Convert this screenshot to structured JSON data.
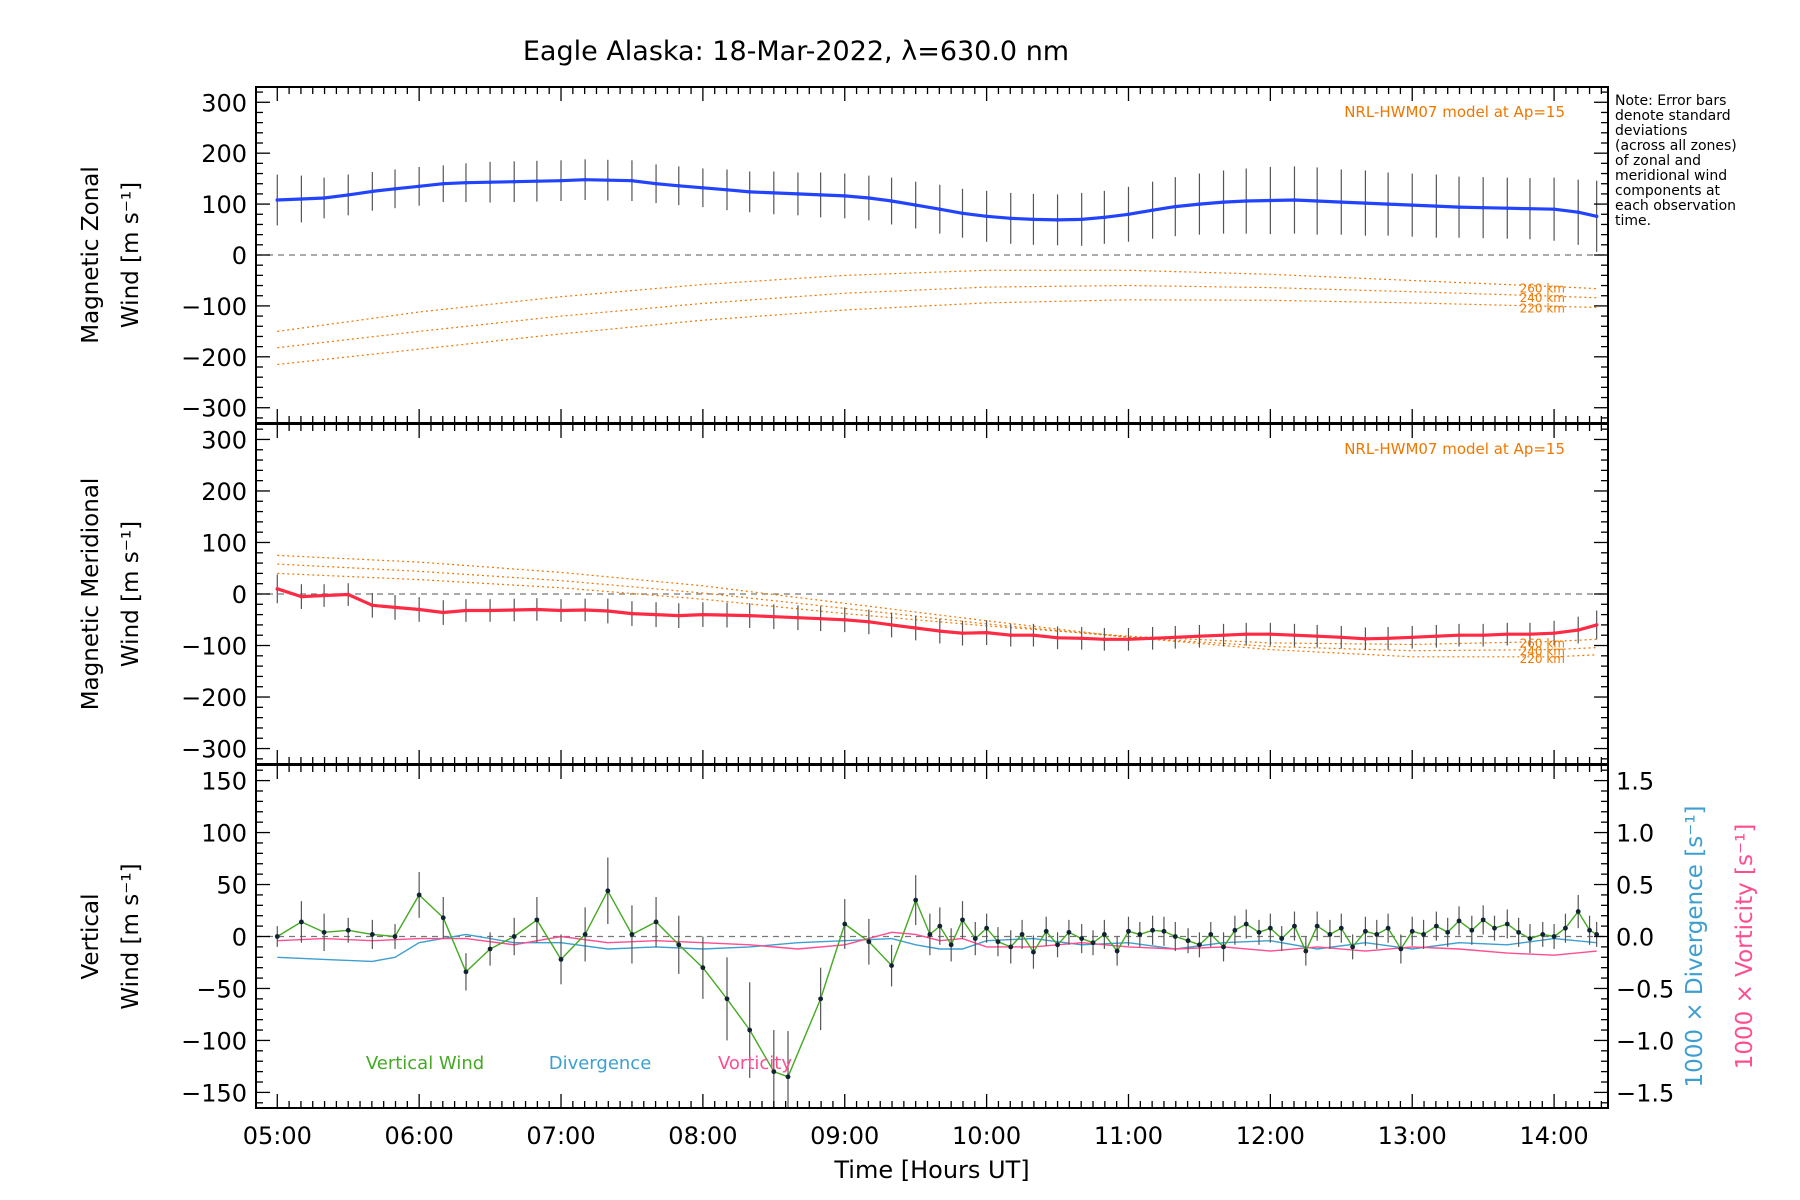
{
  "title": "Eagle Alaska: 18-Mar-2022, λ=630.0 nm",
  "note": [
    "Note: Error bars",
    "denote standard",
    "deviations",
    "(across all zones)",
    "of zonal and",
    "meridional wind",
    "components at",
    "each observation",
    "time."
  ],
  "colors": {
    "zonal": "#2244ff",
    "meridional": "#ff2a44",
    "vertical": "#44aa22",
    "divergence": "#3d9fd0",
    "vorticity": "#ff4d8f",
    "model": "#ee7700",
    "errorbar": "#555555"
  },
  "chart_data": [
    {
      "type": "line",
      "panel": "zonal",
      "ylabel_line1": "Magnetic Zonal",
      "ylabel_line2": "Wind [m s⁻¹]",
      "ylim": [
        -330,
        330
      ],
      "yticks": [
        "300",
        "200",
        "100",
        "0",
        "−100",
        "−200",
        "−300"
      ],
      "model_label": "NRL-HWM07 model at Ap=15",
      "model_altitudes": [
        "260 km",
        "240 km",
        "220 km"
      ],
      "model_curves": [
        {
          "altitude": "260 km",
          "x": [
            5.0,
            6.0,
            7.0,
            8.0,
            9.0,
            10.0,
            11.0,
            12.0,
            13.0,
            14.0,
            14.3
          ],
          "y": [
            -150,
            -112,
            -82,
            -58,
            -40,
            -30,
            -30,
            -38,
            -50,
            -62,
            -66
          ]
        },
        {
          "altitude": "240 km",
          "x": [
            5.0,
            6.0,
            7.0,
            8.0,
            9.0,
            10.0,
            11.0,
            12.0,
            13.0,
            14.0,
            14.3
          ],
          "y": [
            -182,
            -150,
            -120,
            -95,
            -75,
            -63,
            -60,
            -64,
            -72,
            -81,
            -84
          ]
        },
        {
          "altitude": "220 km",
          "x": [
            5.0,
            6.0,
            7.0,
            8.0,
            9.0,
            10.0,
            11.0,
            12.0,
            13.0,
            14.0,
            14.3
          ],
          "y": [
            -215,
            -185,
            -155,
            -128,
            -108,
            -94,
            -88,
            -89,
            -94,
            -101,
            -103
          ]
        }
      ],
      "series": [
        {
          "x": [
            5.0,
            5.17,
            5.33,
            5.5,
            5.67,
            5.83,
            6.0,
            6.17,
            6.33,
            6.5,
            6.67,
            6.83,
            7.0,
            7.17,
            7.33,
            7.5,
            7.67,
            7.83,
            8.0,
            8.17,
            8.33,
            8.5,
            8.67,
            8.83,
            9.0,
            9.17,
            9.33,
            9.5,
            9.67,
            9.83,
            10.0,
            10.17,
            10.33,
            10.5,
            10.67,
            10.83,
            11.0,
            11.17,
            11.33,
            11.5,
            11.67,
            11.83,
            12.0,
            12.17,
            12.33,
            12.5,
            12.67,
            12.83,
            13.0,
            13.17,
            13.33,
            13.5,
            13.67,
            13.83,
            14.0,
            14.17,
            14.3
          ],
          "y": [
            108,
            110,
            112,
            118,
            125,
            130,
            135,
            140,
            142,
            143,
            144,
            145,
            146,
            148,
            147,
            146,
            140,
            136,
            132,
            128,
            124,
            122,
            120,
            118,
            116,
            112,
            106,
            98,
            90,
            82,
            76,
            72,
            70,
            69,
            70,
            74,
            80,
            88,
            95,
            100,
            104,
            106,
            107,
            108,
            106,
            104,
            102,
            100,
            98,
            96,
            94,
            93,
            92,
            91,
            90,
            84,
            76
          ],
          "err": [
            50,
            46,
            40,
            40,
            38,
            38,
            38,
            36,
            38,
            40,
            40,
            40,
            40,
            40,
            40,
            40,
            38,
            38,
            38,
            40,
            40,
            42,
            42,
            44,
            44,
            44,
            46,
            46,
            48,
            48,
            50,
            50,
            50,
            50,
            52,
            52,
            54,
            56,
            58,
            60,
            62,
            64,
            66,
            66,
            66,
            64,
            64,
            62,
            62,
            62,
            60,
            60,
            60,
            60,
            62,
            64,
            70
          ]
        }
      ]
    },
    {
      "type": "line",
      "panel": "meridional",
      "ylabel_line1": "Magnetic Meridional",
      "ylabel_line2": "Wind [m s⁻¹]",
      "ylim": [
        -330,
        330
      ],
      "yticks": [
        "300",
        "200",
        "100",
        "0",
        "−100",
        "−200",
        "−300"
      ],
      "model_label": "NRL-HWM07 model at Ap=15",
      "model_altitudes": [
        "260 km",
        "240 km",
        "220 km"
      ],
      "model_curves": [
        {
          "altitude": "260 km",
          "x": [
            5.0,
            6.0,
            7.0,
            8.0,
            9.0,
            10.0,
            11.0,
            12.0,
            13.0,
            14.0,
            14.3
          ],
          "y": [
            40,
            28,
            12,
            -10,
            -38,
            -62,
            -82,
            -95,
            -98,
            -92,
            -88
          ]
        },
        {
          "altitude": "240 km",
          "x": [
            5.0,
            6.0,
            7.0,
            8.0,
            9.0,
            10.0,
            11.0,
            12.0,
            13.0,
            14.0,
            14.3
          ],
          "y": [
            58,
            44,
            26,
            2,
            -28,
            -58,
            -84,
            -102,
            -110,
            -108,
            -104
          ]
        },
        {
          "altitude": "220 km",
          "x": [
            5.0,
            6.0,
            7.0,
            8.0,
            9.0,
            10.0,
            11.0,
            12.0,
            13.0,
            14.0,
            14.3
          ],
          "y": [
            75,
            62,
            42,
            16,
            -18,
            -52,
            -84,
            -108,
            -122,
            -122,
            -118
          ]
        }
      ],
      "series": [
        {
          "x": [
            5.0,
            5.17,
            5.33,
            5.5,
            5.67,
            5.83,
            6.0,
            6.17,
            6.33,
            6.5,
            6.67,
            6.83,
            7.0,
            7.17,
            7.33,
            7.5,
            7.67,
            7.83,
            8.0,
            8.17,
            8.33,
            8.5,
            8.67,
            8.83,
            9.0,
            9.17,
            9.33,
            9.5,
            9.67,
            9.83,
            10.0,
            10.17,
            10.33,
            10.5,
            10.67,
            10.83,
            11.0,
            11.17,
            11.33,
            11.5,
            11.67,
            11.83,
            12.0,
            12.17,
            12.33,
            12.5,
            12.67,
            12.83,
            13.0,
            13.17,
            13.33,
            13.5,
            13.67,
            13.83,
            14.0,
            14.17,
            14.3
          ],
          "y": [
            10,
            -5,
            -3,
            -1,
            -22,
            -26,
            -30,
            -36,
            -32,
            -32,
            -31,
            -30,
            -32,
            -31,
            -33,
            -38,
            -40,
            -42,
            -40,
            -41,
            -42,
            -44,
            -46,
            -48,
            -50,
            -54,
            -60,
            -66,
            -72,
            -76,
            -75,
            -80,
            -80,
            -85,
            -86,
            -88,
            -88,
            -86,
            -84,
            -82,
            -80,
            -78,
            -78,
            -80,
            -82,
            -84,
            -87,
            -86,
            -84,
            -82,
            -80,
            -80,
            -78,
            -78,
            -76,
            -70,
            -60
          ],
          "err": [
            28,
            24,
            22,
            22,
            24,
            24,
            24,
            24,
            22,
            22,
            22,
            22,
            22,
            22,
            24,
            24,
            24,
            24,
            24,
            24,
            24,
            24,
            24,
            24,
            24,
            24,
            24,
            24,
            24,
            24,
            24,
            22,
            22,
            22,
            22,
            22,
            22,
            22,
            22,
            22,
            22,
            22,
            22,
            22,
            22,
            22,
            22,
            22,
            22,
            22,
            22,
            22,
            22,
            22,
            24,
            26,
            28
          ]
        }
      ]
    },
    {
      "type": "line",
      "panel": "vertical",
      "ylabel_line1": "Vertical",
      "ylabel_line2": "Wind [m s⁻¹]",
      "ylim": [
        -165,
        165
      ],
      "yticks": [
        "150",
        "100",
        "50",
        "0",
        "−50",
        "−100",
        "−150"
      ],
      "y2lim": [
        -1.65,
        1.65
      ],
      "y2ticks": [
        "1.5",
        "1.0",
        "0.5",
        "0.0",
        "−0.5",
        "−1.0",
        "−1.5"
      ],
      "y2label_divergence": "1000 × Divergence [s⁻¹]",
      "y2label_vorticity": "1000 × Vorticity [s⁻¹]",
      "legend": [
        "Vertical Wind",
        "Divergence",
        "Vorticity"
      ],
      "xlabel": "Time [Hours UT]",
      "xlim": [
        4.85,
        14.38
      ],
      "xticks": [
        "05:00",
        "06:00",
        "07:00",
        "08:00",
        "09:00",
        "10:00",
        "11:00",
        "12:00",
        "13:00",
        "14:00"
      ],
      "series": [
        {
          "name": "Vertical Wind",
          "x": [
            5.0,
            5.17,
            5.33,
            5.5,
            5.67,
            5.83,
            6.0,
            6.17,
            6.33,
            6.5,
            6.67,
            6.83,
            7.0,
            7.17,
            7.33,
            7.5,
            7.67,
            7.83,
            8.0,
            8.17,
            8.33,
            8.5,
            8.6,
            8.83,
            9.0,
            9.17,
            9.33,
            9.5,
            9.6,
            9.67,
            9.75,
            9.83,
            9.92,
            10.0,
            10.08,
            10.17,
            10.25,
            10.33,
            10.42,
            10.5,
            10.58,
            10.67,
            10.75,
            10.83,
            10.92,
            11.0,
            11.08,
            11.17,
            11.25,
            11.33,
            11.42,
            11.5,
            11.58,
            11.67,
            11.75,
            11.83,
            11.92,
            12.0,
            12.08,
            12.17,
            12.25,
            12.33,
            12.42,
            12.5,
            12.58,
            12.67,
            12.75,
            12.83,
            12.92,
            13.0,
            13.08,
            13.17,
            13.25,
            13.33,
            13.42,
            13.5,
            13.58,
            13.67,
            13.75,
            13.83,
            13.92,
            14.0,
            14.08,
            14.17,
            14.25,
            14.3
          ],
          "y": [
            0,
            14,
            4,
            6,
            2,
            0,
            40,
            18,
            -34,
            -12,
            0,
            16,
            -22,
            2,
            44,
            2,
            14,
            -8,
            -30,
            -60,
            -90,
            -130,
            -135,
            -60,
            12,
            -5,
            -28,
            35,
            2,
            10,
            -8,
            16,
            -2,
            8,
            -5,
            -10,
            2,
            -15,
            5,
            -8,
            4,
            -2,
            -6,
            2,
            -14,
            5,
            2,
            6,
            5,
            0,
            -4,
            -8,
            2,
            -10,
            6,
            12,
            4,
            8,
            -2,
            10,
            -14,
            10,
            2,
            8,
            -10,
            5,
            2,
            8,
            -12,
            5,
            2,
            10,
            4,
            15,
            6,
            16,
            8,
            12,
            4,
            -2,
            2,
            0,
            8,
            24,
            6,
            2
          ],
          "err": [
            10,
            20,
            18,
            12,
            14,
            12,
            22,
            20,
            18,
            16,
            18,
            22,
            24,
            26,
            32,
            28,
            24,
            28,
            30,
            40,
            46,
            40,
            44,
            30,
            24,
            22,
            20,
            24,
            20,
            18,
            16,
            18,
            16,
            14,
            14,
            16,
            14,
            16,
            14,
            12,
            12,
            14,
            12,
            14,
            14,
            14,
            12,
            14,
            14,
            14,
            12,
            12,
            12,
            14,
            14,
            14,
            12,
            14,
            12,
            14,
            14,
            14,
            14,
            14,
            12,
            14,
            14,
            14,
            14,
            14,
            14,
            14,
            14,
            14,
            14,
            14,
            12,
            14,
            14,
            14,
            12,
            12,
            14,
            16,
            14,
            12
          ]
        },
        {
          "name": "Divergence",
          "x": [
            5.0,
            5.33,
            5.67,
            5.83,
            6.0,
            6.33,
            6.67,
            7.0,
            7.33,
            7.67,
            8.0,
            8.33,
            8.67,
            9.0,
            9.33,
            9.5,
            9.67,
            9.83,
            10.0,
            10.33,
            10.67,
            11.0,
            11.33,
            11.67,
            12.0,
            12.33,
            12.67,
            13.0,
            13.33,
            13.67,
            14.0,
            14.3
          ],
          "y": [
            -0.2,
            -0.22,
            -0.24,
            -0.2,
            -0.06,
            0.02,
            -0.06,
            -0.06,
            -0.12,
            -0.1,
            -0.12,
            -0.1,
            -0.06,
            -0.04,
            -0.02,
            -0.08,
            -0.12,
            -0.12,
            -0.04,
            -0.02,
            -0.08,
            -0.06,
            -0.12,
            -0.06,
            -0.04,
            -0.12,
            -0.06,
            -0.12,
            -0.06,
            -0.08,
            -0.02,
            -0.06
          ]
        },
        {
          "name": "Vorticity",
          "x": [
            5.0,
            5.33,
            5.67,
            6.0,
            6.33,
            6.67,
            7.0,
            7.33,
            7.67,
            8.0,
            8.33,
            8.67,
            9.0,
            9.33,
            9.5,
            9.67,
            9.83,
            10.0,
            10.33,
            10.67,
            11.0,
            11.33,
            11.67,
            12.0,
            12.33,
            12.67,
            13.0,
            13.33,
            13.67,
            14.0,
            14.3
          ],
          "y": [
            -0.04,
            -0.02,
            -0.04,
            -0.02,
            -0.02,
            -0.08,
            0.0,
            -0.06,
            -0.04,
            -0.06,
            -0.08,
            -0.12,
            -0.08,
            0.04,
            0.02,
            -0.04,
            -0.02,
            -0.1,
            -0.1,
            -0.06,
            -0.1,
            -0.12,
            -0.1,
            -0.14,
            -0.1,
            -0.14,
            -0.1,
            -0.12,
            -0.16,
            -0.18,
            -0.14
          ]
        }
      ]
    }
  ]
}
